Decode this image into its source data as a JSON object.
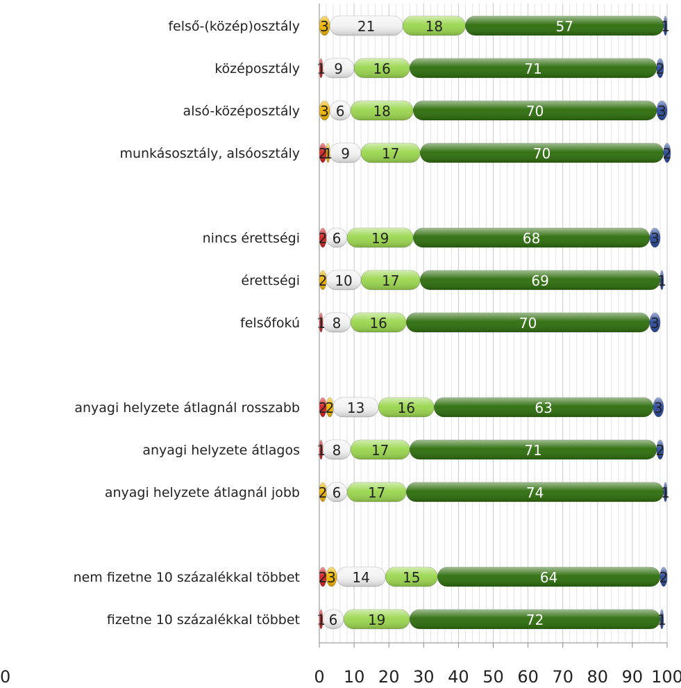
{
  "chart_data": {
    "type": "bar",
    "orientation": "horizontal",
    "stacked": true,
    "xlim": [
      0,
      100
    ],
    "x_ticks": [
      "0",
      "10",
      "20",
      "30",
      "40",
      "50",
      "60",
      "70",
      "80",
      "90",
      "100"
    ],
    "grid": true,
    "categories": [
      "felső-(közép)osztály",
      "középosztály",
      "alsó-középosztály",
      "munkásosztály, alsóosztály",
      "",
      "nincs érettségi",
      "érettségi",
      "felsőfokú",
      "",
      "anyagi helyzete átlagnál rosszabb",
      "anyagi helyzete átlagos",
      "anyagi helyzete átlagnál jobb",
      "",
      "nem fizetne 10 százalékkal többet",
      "fizetne 10 százalékkal többet"
    ],
    "series": [
      {
        "color": "#d42020",
        "values": [
          0,
          1,
          0,
          2,
          null,
          2,
          0,
          1,
          null,
          2,
          1,
          0,
          null,
          2,
          1
        ]
      },
      {
        "color": "#f0b400",
        "values": [
          3,
          0,
          3,
          1,
          null,
          0,
          2,
          0,
          null,
          2,
          0,
          2,
          null,
          3,
          0
        ]
      },
      {
        "color": "#f2f2f2",
        "values": [
          21,
          9,
          6,
          9,
          null,
          6,
          10,
          8,
          null,
          13,
          8,
          6,
          null,
          14,
          6
        ]
      },
      {
        "color": "#9ad64e",
        "values": [
          18,
          16,
          18,
          17,
          null,
          19,
          17,
          16,
          null,
          16,
          17,
          17,
          null,
          15,
          19
        ]
      },
      {
        "color": "#2d6d0c",
        "values": [
          57,
          71,
          70,
          70,
          null,
          68,
          69,
          70,
          null,
          63,
          71,
          74,
          null,
          64,
          72
        ]
      },
      {
        "color": "#2a4a9a",
        "values": [
          1,
          2,
          3,
          2,
          null,
          3,
          1,
          3,
          null,
          3,
          2,
          1,
          null,
          2,
          1
        ]
      }
    ],
    "label_colors": [
      "#222222",
      "#222222",
      "#222222",
      "#222222",
      "#ffffff",
      "#222222"
    ],
    "extra_tick_text": "0"
  }
}
